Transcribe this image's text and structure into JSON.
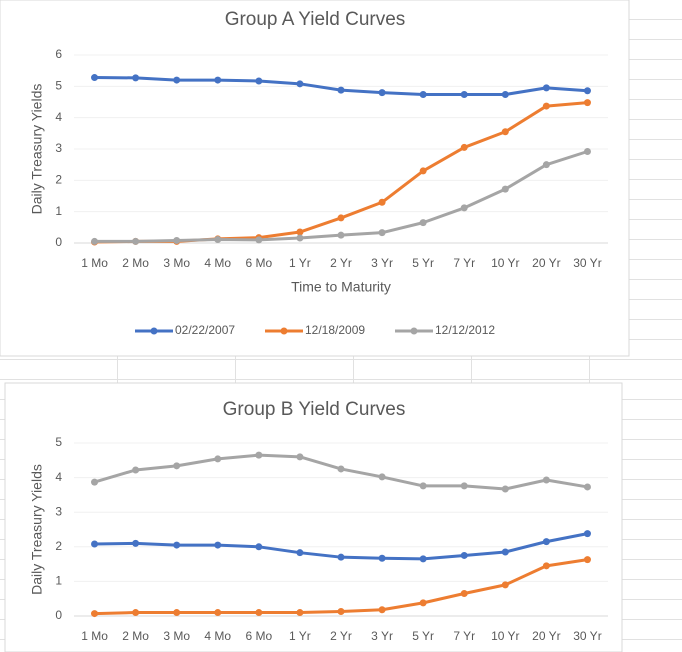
{
  "chart_data": [
    {
      "type": "line",
      "title": "Group A Yield Curves",
      "x_label": "Time to Maturity",
      "y_label": "Daily Treasury Yields",
      "categories": [
        "1 Mo",
        "2 Mo",
        "3 Mo",
        "4 Mo",
        "6 Mo",
        "1 Yr",
        "2 Yr",
        "3 Yr",
        "5 Yr",
        "7 Yr",
        "10 Yr",
        "20 Yr",
        "30 Yr"
      ],
      "series": [
        {
          "name": "02/22/2007",
          "color": "#4472c4",
          "values": [
            5.28,
            5.27,
            5.2,
            5.2,
            5.17,
            5.08,
            4.88,
            4.8,
            4.74,
            4.74,
            4.74,
            4.95,
            4.86
          ]
        },
        {
          "name": "12/18/2009",
          "color": "#ed7d31",
          "values": [
            0.03,
            0.05,
            0.05,
            0.13,
            0.17,
            0.35,
            0.8,
            1.3,
            2.3,
            3.05,
            3.55,
            4.37,
            4.48
          ]
        },
        {
          "name": "12/12/2012",
          "color": "#a5a5a5",
          "values": [
            0.05,
            0.05,
            0.08,
            0.11,
            0.1,
            0.16,
            0.25,
            0.33,
            0.65,
            1.12,
            1.72,
            2.5,
            2.92
          ]
        }
      ],
      "ylim": [
        0,
        6
      ],
      "yticks": [
        0,
        1,
        2,
        3,
        4,
        5,
        6
      ],
      "grid": true,
      "legend": "bottom"
    },
    {
      "type": "line",
      "title": "Group B Yield Curves",
      "y_label": "Daily Treasury Yields",
      "categories": [
        "1 Mo",
        "2 Mo",
        "3 Mo",
        "4 Mo",
        "6 Mo",
        "1 Yr",
        "2 Yr",
        "3 Yr",
        "5 Yr",
        "7 Yr",
        "10 Yr",
        "20 Yr",
        "30 Yr"
      ],
      "series": [
        {
          "color": "#4472c4",
          "values": [
            2.08,
            2.1,
            2.05,
            2.05,
            2.0,
            1.83,
            1.7,
            1.67,
            1.65,
            1.75,
            1.85,
            2.15,
            2.38
          ]
        },
        {
          "color": "#ed7d31",
          "values": [
            0.07,
            0.1,
            0.1,
            0.1,
            0.1,
            0.1,
            0.13,
            0.18,
            0.38,
            0.65,
            0.9,
            1.45,
            1.63
          ]
        },
        {
          "color": "#a5a5a5",
          "values": [
            3.87,
            4.22,
            4.34,
            4.54,
            4.65,
            4.6,
            4.25,
            4.02,
            3.76,
            3.76,
            3.67,
            3.93,
            3.73
          ]
        }
      ],
      "ylim": [
        0,
        5
      ],
      "yticks": [
        0,
        1,
        2,
        3,
        4,
        5
      ],
      "grid": true
    }
  ]
}
